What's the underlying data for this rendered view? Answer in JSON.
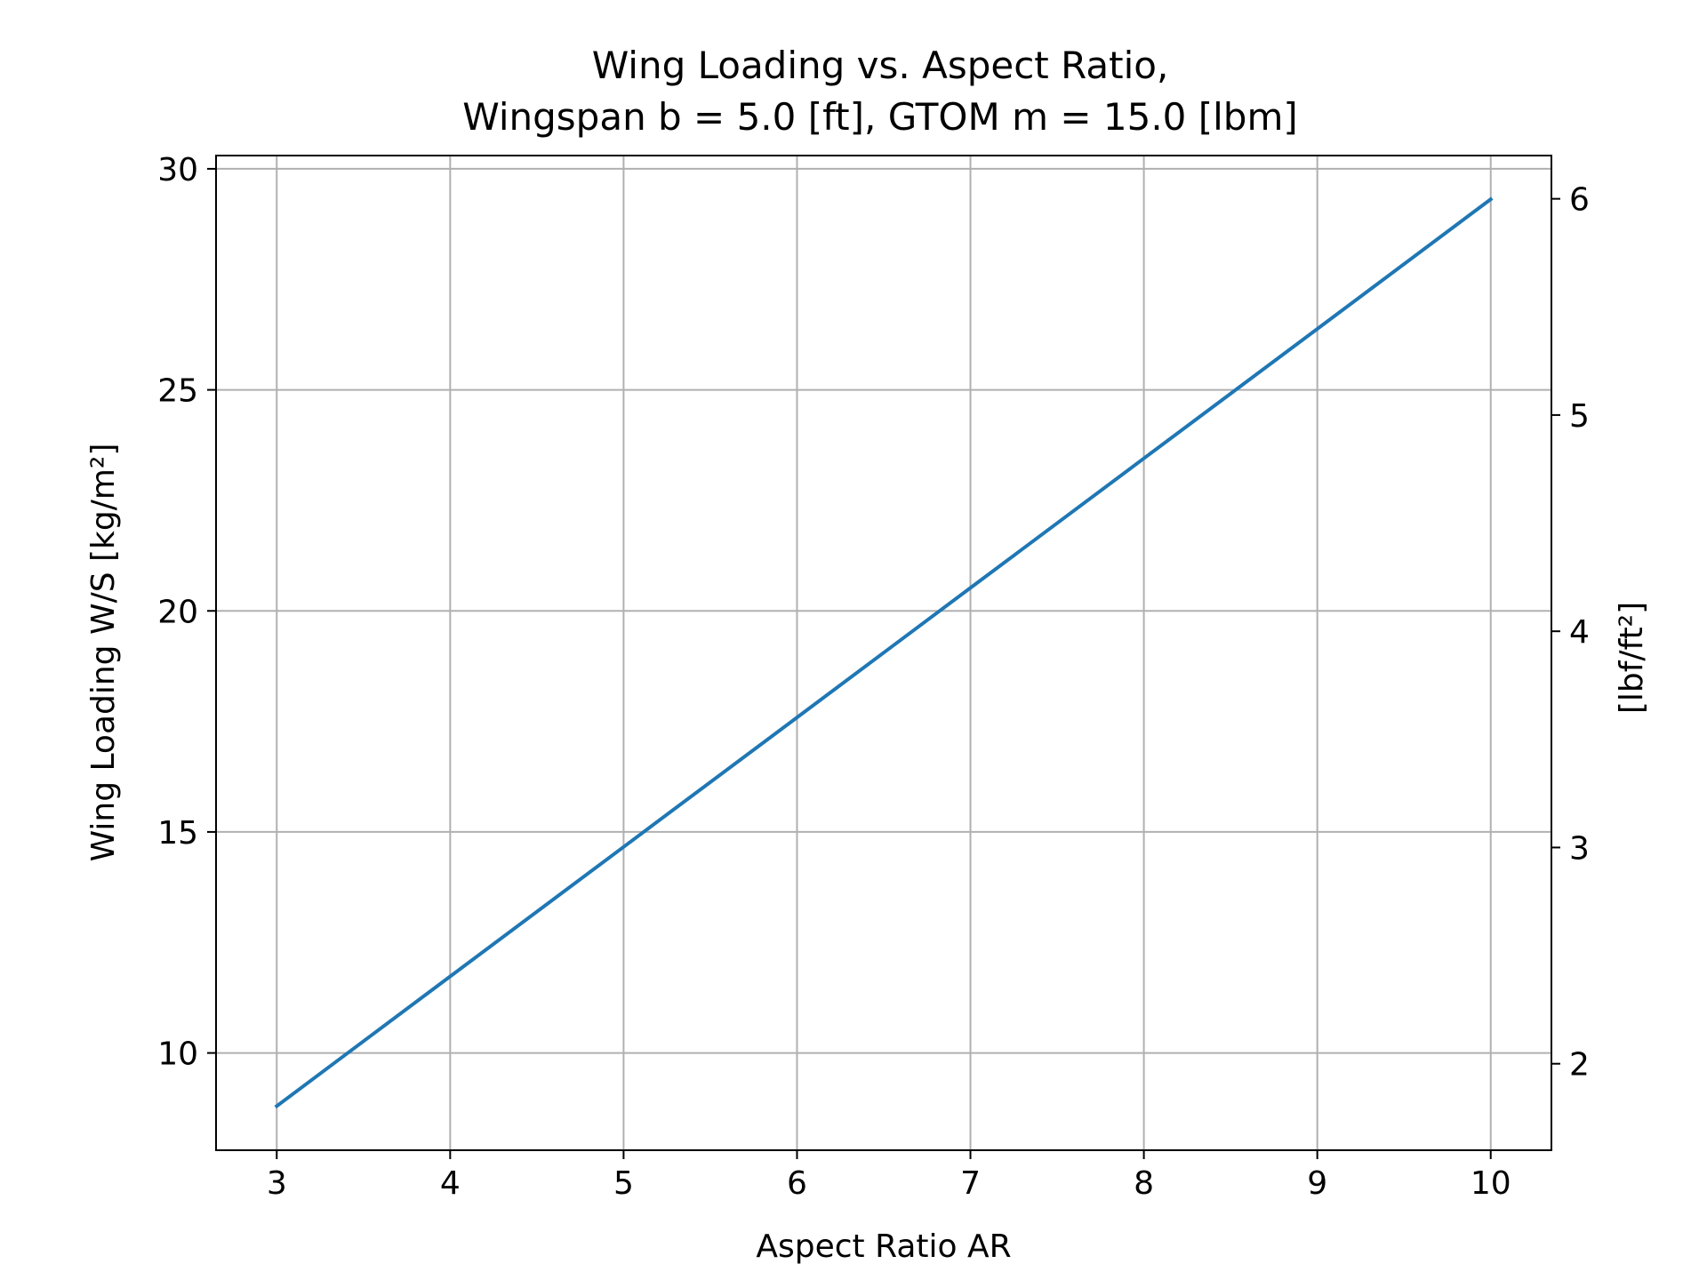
{
  "chart_data": {
    "type": "line",
    "title_line1": "Wing Loading vs. Aspect Ratio,",
    "title_line2": "Wingspan b = 5.0 [ft], GTOM m = 15.0 [lbm]",
    "xlabel": "Aspect Ratio AR",
    "ylabel": "Wing Loading W/S [kg/m²]",
    "ylabel_right": "[lbf/ft²]",
    "xlim": [
      2.65,
      10.35
    ],
    "ylim": [
      7.8,
      30.3
    ],
    "ylim_right": [
      1.6,
      6.2
    ],
    "x_ticks": [
      3,
      4,
      5,
      6,
      7,
      8,
      9,
      10
    ],
    "x_tick_labels": [
      "3",
      "4",
      "5",
      "6",
      "7",
      "8",
      "9",
      "10"
    ],
    "y_ticks": [
      10,
      15,
      20,
      25,
      30
    ],
    "y_tick_labels": [
      "10",
      "15",
      "20",
      "25",
      "30"
    ],
    "y_right_ticks": [
      2,
      3,
      4,
      5,
      6
    ],
    "y_right_tick_labels": [
      "2",
      "3",
      "4",
      "5",
      "6"
    ],
    "grid": true,
    "series": [
      {
        "color": "#1f77b4",
        "x": [
          3,
          4,
          5,
          6,
          7,
          8,
          9,
          10
        ],
        "y": [
          8.8,
          11.73,
          14.66,
          17.59,
          20.52,
          23.45,
          26.38,
          29.31
        ]
      }
    ]
  }
}
